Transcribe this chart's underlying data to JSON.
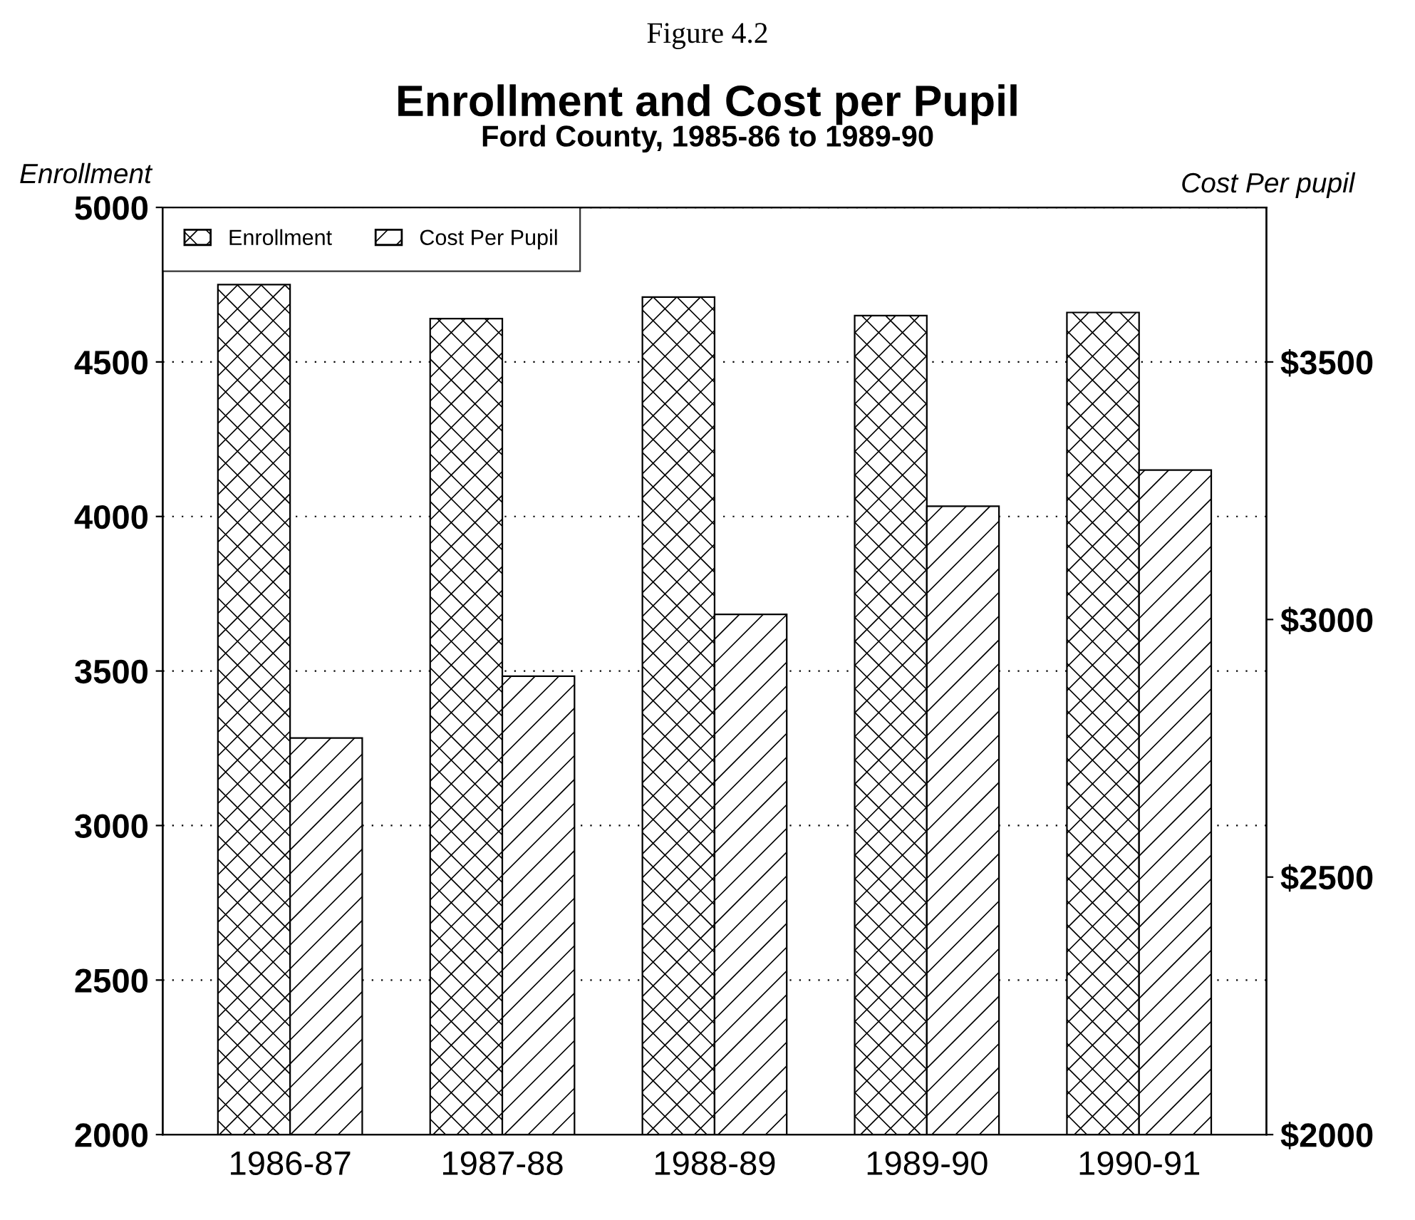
{
  "chart_data": {
    "type": "bar",
    "title": "Enrollment and Cost per Pupil",
    "subtitle": "Ford County, 1985-86 to 1989-90",
    "ylabel": "Enrollment",
    "y2label": "Cost Per pupil",
    "annotations": [
      "Figure 4.2"
    ],
    "categories": [
      "1986-87",
      "1987-88",
      "1988-89",
      "1989-90",
      "1990-91"
    ],
    "series": [
      {
        "name": "Enrollment",
        "color": "#000000",
        "values": [
          4750,
          4640,
          4710,
          4650,
          4660
        ]
      },
      {
        "name": "Cost Per Pupil",
        "color": "#000000",
        "axis": "y2",
        "values": [
          2770,
          2890,
          3010,
          3220,
          3290
        ]
      }
    ],
    "ylim": [
      2000,
      5000
    ],
    "yticks": [
      2000,
      2500,
      3000,
      3500,
      4000,
      4500,
      5000
    ],
    "y2lim": [
      2000,
      3800
    ],
    "y2ticks": [
      {
        "value": 2000,
        "label": "$2000"
      },
      {
        "value": 2500,
        "label": "$2500"
      },
      {
        "value": 3000,
        "label": "$3000"
      },
      {
        "value": 3500,
        "label": "$3500"
      }
    ],
    "grid": "y",
    "legend": "top left"
  }
}
